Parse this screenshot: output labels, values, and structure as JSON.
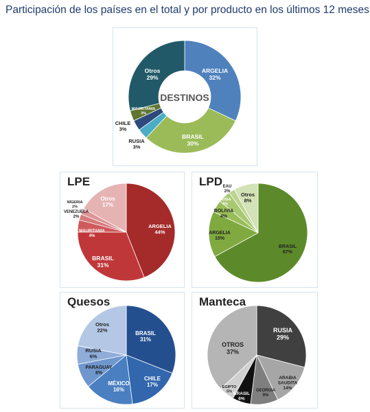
{
  "page": {
    "title": "Participación de los países en el total y por producto en los últimos 12 meses"
  },
  "chart_data": [
    {
      "id": "destinos",
      "type": "pie",
      "title": "DESTINOS",
      "slices": [
        {
          "label": "ARGELIA",
          "value": 32,
          "display": "32%",
          "color": "#4f81bd"
        },
        {
          "label": "BRASIL",
          "value": 30,
          "display": "30%",
          "color": "#9bbb59"
        },
        {
          "label": "RUSIA",
          "value": 3,
          "display": "3%",
          "color": "#4bacc6"
        },
        {
          "label": "CHILE",
          "value": 3,
          "display": "3%",
          "color": "#2e4a7d"
        },
        {
          "label": "MAURITANIA",
          "value": 3,
          "display": "3%",
          "color": "#5f7530"
        },
        {
          "label": "Otros",
          "value": 29,
          "display": "29%",
          "color": "#215968"
        }
      ]
    },
    {
      "id": "lpe",
      "type": "pie",
      "title": "LPE",
      "slices": [
        {
          "label": "ARGELIA",
          "value": 44,
          "display": "44%",
          "color": "#a52a2a"
        },
        {
          "label": "BRASIL",
          "value": 31,
          "display": "31%",
          "color": "#c0373a"
        },
        {
          "label": "MAURITANIA",
          "value": 4,
          "display": "4%",
          "color": "#cf5a5c"
        },
        {
          "label": "VENEZUELA",
          "value": 2,
          "display": "2%",
          "color": "#d67a7b"
        },
        {
          "label": "NÍGERIA",
          "value": 2,
          "display": "2%",
          "color": "#dc9596"
        },
        {
          "label": "Otros",
          "value": 17,
          "display": "17%",
          "color": "#e6b3b3"
        }
      ]
    },
    {
      "id": "lpd",
      "type": "pie",
      "title": "LPD",
      "slices": [
        {
          "label": "BRASIL",
          "value": 67,
          "display": "67%",
          "color": "#5c8a2a"
        },
        {
          "label": "ARGELIA",
          "value": 15,
          "display": "15%",
          "color": "#80aa40"
        },
        {
          "label": "BOLIVIA",
          "value": 4,
          "display": "4%",
          "color": "#98bd58"
        },
        {
          "label": "RUSIA",
          "value": 4,
          "display": "4%",
          "color": "#a9c872"
        },
        {
          "label": "EAU",
          "value": 2,
          "display": "2%",
          "color": "#bcd48e"
        },
        {
          "label": "Otros",
          "value": 8,
          "display": "8%",
          "color": "#d3e2b7"
        }
      ]
    },
    {
      "id": "quesos",
      "type": "pie",
      "title": "Quesos",
      "slices": [
        {
          "label": "BRASIL",
          "value": 31,
          "display": "31%",
          "color": "#244f8f"
        },
        {
          "label": "CHILE",
          "value": 17,
          "display": "17%",
          "color": "#3267ad"
        },
        {
          "label": "MÉXICO",
          "value": 16,
          "display": "16%",
          "color": "#4a7fc1"
        },
        {
          "label": "PARAGUAY",
          "value": 8,
          "display": "8%",
          "color": "#6f97cd"
        },
        {
          "label": "RUSIA",
          "value": 6,
          "display": "6%",
          "color": "#8fadd8"
        },
        {
          "label": "Otros",
          "value": 22,
          "display": "22%",
          "color": "#b4c8e5"
        }
      ]
    },
    {
      "id": "manteca",
      "type": "pie",
      "title": "Manteca",
      "slices": [
        {
          "label": "RUSIA",
          "value": 29,
          "display": "29%",
          "color": "#404040"
        },
        {
          "label": "ARABIA SAUDITA",
          "value": 14,
          "display": "14%",
          "color": "#a6a6a6"
        },
        {
          "label": "GEORGIA",
          "value": 9,
          "display": "9%",
          "color": "#7f7f7f"
        },
        {
          "label": "BRASIL",
          "value": 6,
          "display": "6%",
          "color": "#111111"
        },
        {
          "label": "EGIPTO",
          "value": 5,
          "display": "5%",
          "color": "#d0d0d0"
        },
        {
          "label": "OTROS",
          "value": 37,
          "display": "37%",
          "color": "#b5b5b5"
        }
      ]
    }
  ]
}
